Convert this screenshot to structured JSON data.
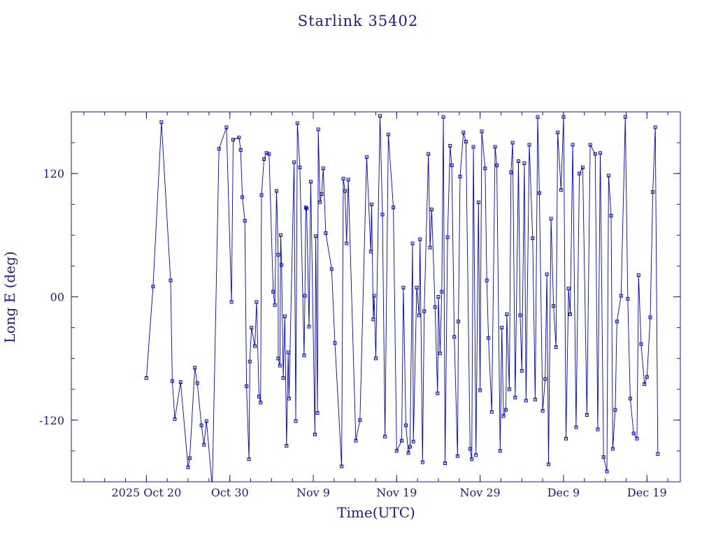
{
  "chart_data": {
    "type": "line",
    "title": "Starlink 35402",
    "xlabel": "Time(UTC)",
    "ylabel": "Long E (deg)",
    "xlim_days": [
      0,
      73
    ],
    "ylim": [
      -180,
      180
    ],
    "x_ticks": [
      {
        "day": 9,
        "label": "2025 Oct 20"
      },
      {
        "day": 19,
        "label": "Oct 30"
      },
      {
        "day": 29,
        "label": "Nov  9"
      },
      {
        "day": 39,
        "label": "Nov 19"
      },
      {
        "day": 49,
        "label": "Nov 29"
      },
      {
        "day": 59,
        "label": "Dec  9"
      },
      {
        "day": 69,
        "label": "Dec 19"
      }
    ],
    "y_ticks": [
      {
        "value": 120,
        "label": "120"
      },
      {
        "value": 0,
        "label": "00"
      },
      {
        "value": -120,
        "label": "-120"
      }
    ],
    "x_origin_note": "x values are days since 2025 Oct 11 00:00 UTC",
    "series": [
      {
        "name": "",
        "color": "#0000cc",
        "marker": "square",
        "points": [
          [
            9.0,
            -79
          ],
          [
            9.8,
            10
          ],
          [
            10.8,
            170
          ],
          [
            11.9,
            16
          ],
          [
            12.1,
            -82
          ],
          [
            12.4,
            -119
          ],
          [
            13.1,
            -83
          ],
          [
            14.0,
            -166
          ],
          [
            14.2,
            -157
          ],
          [
            14.8,
            -69
          ],
          [
            15.1,
            -84
          ],
          [
            15.6,
            -125
          ],
          [
            15.9,
            -144
          ],
          [
            16.2,
            -121
          ],
          [
            16.9,
            -185
          ],
          [
            17.7,
            144
          ],
          [
            18.6,
            165
          ],
          [
            19.2,
            -5
          ],
          [
            19.4,
            153
          ],
          [
            20.1,
            155
          ],
          [
            20.3,
            143
          ],
          [
            20.5,
            97
          ],
          [
            20.8,
            74
          ],
          [
            21.0,
            -87
          ],
          [
            21.3,
            -158
          ],
          [
            21.4,
            -63
          ],
          [
            21.6,
            -30
          ],
          [
            22.0,
            -48
          ],
          [
            22.2,
            -5
          ],
          [
            22.5,
            -97
          ],
          [
            22.7,
            -103
          ],
          [
            22.8,
            99
          ],
          [
            23.1,
            134
          ],
          [
            23.4,
            140
          ],
          [
            23.7,
            139
          ],
          [
            24.2,
            5
          ],
          [
            24.4,
            -8
          ],
          [
            24.6,
            103
          ],
          [
            24.8,
            41
          ],
          [
            24.8,
            -60
          ],
          [
            25.0,
            -67
          ],
          [
            25.1,
            60
          ],
          [
            25.2,
            31
          ],
          [
            25.4,
            -79
          ],
          [
            25.6,
            -19
          ],
          [
            25.8,
            -145
          ],
          [
            26.0,
            -54
          ],
          [
            26.1,
            -99
          ],
          [
            26.7,
            131
          ],
          [
            26.9,
            -121
          ],
          [
            27.1,
            169
          ],
          [
            27.4,
            126
          ],
          [
            27.9,
            -57
          ],
          [
            28.0,
            1
          ],
          [
            28.1,
            87
          ],
          [
            28.2,
            86
          ],
          [
            28.5,
            -29
          ],
          [
            28.7,
            112
          ],
          [
            29.2,
            -134
          ],
          [
            29.3,
            59
          ],
          [
            29.5,
            -113
          ],
          [
            29.6,
            163
          ],
          [
            29.8,
            92
          ],
          [
            30.0,
            100
          ],
          [
            30.2,
            125
          ],
          [
            30.5,
            62
          ],
          [
            31.2,
            27
          ],
          [
            31.6,
            -45
          ],
          [
            32.4,
            -165
          ],
          [
            32.6,
            115
          ],
          [
            32.8,
            103
          ],
          [
            33.0,
            52
          ],
          [
            33.2,
            114
          ],
          [
            34.1,
            -140
          ],
          [
            34.6,
            -120
          ],
          [
            35.4,
            136
          ],
          [
            35.9,
            44
          ],
          [
            36.0,
            90
          ],
          [
            36.2,
            -22
          ],
          [
            36.3,
            1
          ],
          [
            36.5,
            -60
          ],
          [
            37.0,
            176
          ],
          [
            37.3,
            80
          ],
          [
            37.6,
            -136
          ],
          [
            38.0,
            158
          ],
          [
            38.6,
            87
          ],
          [
            39.0,
            -150
          ],
          [
            39.6,
            -140
          ],
          [
            39.8,
            9
          ],
          [
            40.1,
            -125
          ],
          [
            40.4,
            -152
          ],
          [
            40.6,
            -146
          ],
          [
            40.9,
            52
          ],
          [
            41.0,
            -141
          ],
          [
            41.4,
            9
          ],
          [
            41.7,
            -18
          ],
          [
            41.8,
            56
          ],
          [
            42.1,
            -161
          ],
          [
            42.3,
            -14
          ],
          [
            42.8,
            139
          ],
          [
            43.0,
            48
          ],
          [
            43.2,
            85
          ],
          [
            43.6,
            -10
          ],
          [
            43.9,
            -94
          ],
          [
            44.0,
            0
          ],
          [
            44.2,
            -55
          ],
          [
            44.4,
            5
          ],
          [
            44.6,
            175
          ],
          [
            44.8,
            -162
          ],
          [
            45.1,
            58
          ],
          [
            45.4,
            147
          ],
          [
            45.6,
            128
          ],
          [
            45.9,
            -39
          ],
          [
            46.3,
            -155
          ],
          [
            46.4,
            -24
          ],
          [
            46.6,
            117
          ],
          [
            47.0,
            160
          ],
          [
            47.3,
            151
          ],
          [
            47.8,
            -148
          ],
          [
            48.0,
            -158
          ],
          [
            48.2,
            146
          ],
          [
            48.5,
            -154
          ],
          [
            48.8,
            92
          ],
          [
            49.0,
            -91
          ],
          [
            49.2,
            161
          ],
          [
            49.6,
            125
          ],
          [
            49.8,
            16
          ],
          [
            50.0,
            -40
          ],
          [
            50.4,
            -112
          ],
          [
            50.8,
            146
          ],
          [
            51.0,
            128
          ],
          [
            51.4,
            -150
          ],
          [
            51.6,
            -30
          ],
          [
            51.8,
            -116
          ],
          [
            52.1,
            -110
          ],
          [
            52.2,
            -17
          ],
          [
            52.5,
            -90
          ],
          [
            52.7,
            121
          ],
          [
            52.9,
            150
          ],
          [
            53.2,
            -98
          ],
          [
            53.6,
            132
          ],
          [
            53.8,
            -18
          ],
          [
            54.0,
            -72
          ],
          [
            54.3,
            130
          ],
          [
            54.5,
            -101
          ],
          [
            54.9,
            148
          ],
          [
            55.3,
            57
          ],
          [
            55.6,
            -100
          ],
          [
            55.9,
            175
          ],
          [
            56.1,
            101
          ],
          [
            56.5,
            -111
          ],
          [
            56.8,
            -80
          ],
          [
            57.0,
            22
          ],
          [
            57.2,
            -163
          ],
          [
            57.5,
            76
          ],
          [
            57.8,
            -9
          ],
          [
            58.1,
            -49
          ],
          [
            58.3,
            160
          ],
          [
            58.7,
            104
          ],
          [
            59.0,
            175
          ],
          [
            59.3,
            -138
          ],
          [
            59.6,
            8
          ],
          [
            59.8,
            -17
          ],
          [
            60.1,
            148
          ],
          [
            60.5,
            -127
          ],
          [
            60.9,
            120
          ],
          [
            61.3,
            126
          ],
          [
            61.8,
            -115
          ],
          [
            62.2,
            148
          ],
          [
            62.8,
            139
          ],
          [
            63.1,
            -129
          ],
          [
            63.4,
            140
          ],
          [
            63.8,
            -156
          ],
          [
            64.2,
            -170
          ],
          [
            64.4,
            118
          ],
          [
            64.7,
            79
          ],
          [
            64.9,
            -148
          ],
          [
            65.2,
            -110
          ],
          [
            65.4,
            -24
          ],
          [
            65.9,
            1
          ],
          [
            66.4,
            175
          ],
          [
            66.7,
            -2
          ],
          [
            67.0,
            -99
          ],
          [
            67.4,
            -133
          ],
          [
            67.8,
            -138
          ],
          [
            68.0,
            21
          ],
          [
            68.3,
            -46
          ],
          [
            68.7,
            -85
          ],
          [
            69.0,
            -78
          ],
          [
            69.4,
            -20
          ],
          [
            69.7,
            102
          ],
          [
            70.0,
            165
          ],
          [
            70.3,
            -153
          ]
        ]
      }
    ]
  }
}
